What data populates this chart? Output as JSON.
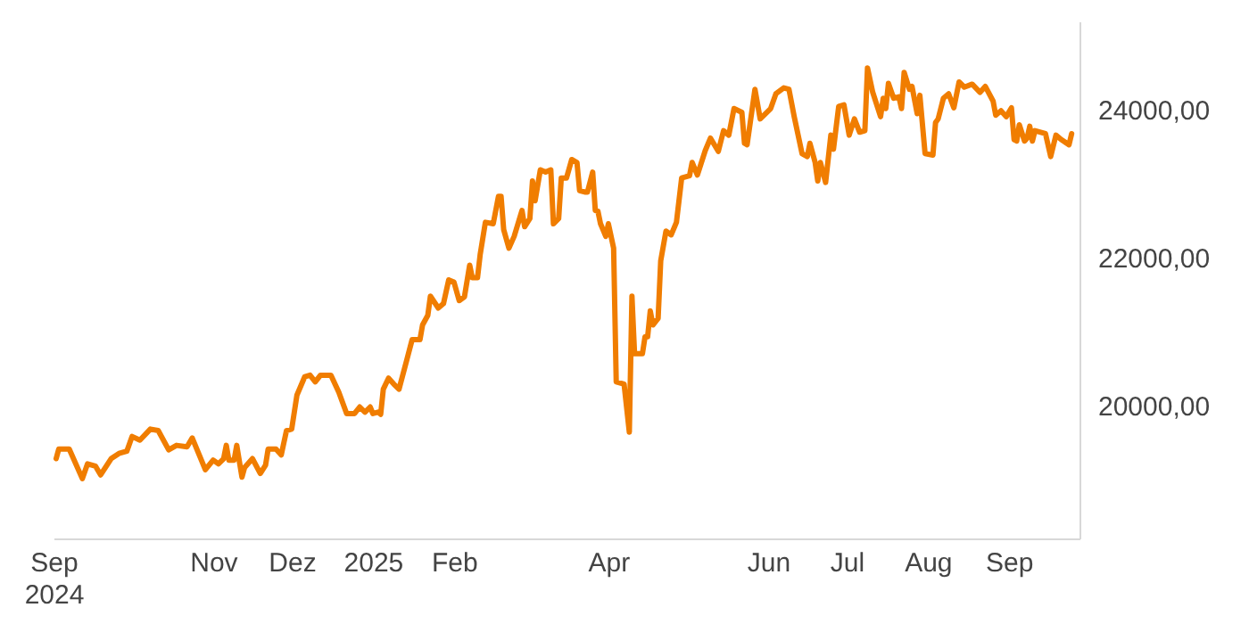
{
  "chart_data": {
    "type": "line",
    "x": [
      "2024-09-02",
      "2024-09-03",
      "2024-09-07",
      "2024-09-12",
      "2024-09-14",
      "2024-09-17",
      "2024-09-19",
      "2024-09-23",
      "2024-09-26",
      "2024-09-29",
      "2024-10-01",
      "2024-10-04",
      "2024-10-08",
      "2024-10-11",
      "2024-10-15",
      "2024-10-18",
      "2024-10-22",
      "2024-10-24",
      "2024-10-29",
      "2024-11-01",
      "2024-11-03",
      "2024-11-05",
      "2024-11-06",
      "2024-11-07",
      "2024-11-09",
      "2024-11-10",
      "2024-11-12",
      "2024-11-13",
      "2024-11-16",
      "2024-11-19",
      "2024-11-21",
      "2024-11-22",
      "2024-11-25",
      "2024-11-27",
      "2024-11-29",
      "2024-12-01",
      "2024-12-03",
      "2024-12-06",
      "2024-12-08",
      "2024-12-10",
      "2024-12-12",
      "2024-12-16",
      "2024-12-19",
      "2024-12-22",
      "2024-12-25",
      "2024-12-27",
      "2024-12-29",
      "2024-12-31",
      "2025-01-01",
      "2025-01-03",
      "2025-01-04",
      "2025-01-05",
      "2025-01-07",
      "2025-01-09",
      "2025-01-11",
      "2025-01-14",
      "2025-01-16",
      "2025-01-19",
      "2025-01-20",
      "2025-01-22",
      "2025-01-23",
      "2025-01-26",
      "2025-01-28",
      "2025-01-30",
      "2025-02-01",
      "2025-02-03",
      "2025-02-05",
      "2025-02-07",
      "2025-02-08",
      "2025-02-10",
      "2025-02-11",
      "2025-02-13",
      "2025-02-16",
      "2025-02-18",
      "2025-02-19",
      "2025-02-20",
      "2025-02-22",
      "2025-02-24",
      "2025-02-27",
      "2025-02-28",
      "2025-03-02",
      "2025-03-03",
      "2025-03-04",
      "2025-03-06",
      "2025-03-08",
      "2025-03-10",
      "2025-03-11",
      "2025-03-13",
      "2025-03-14",
      "2025-03-16",
      "2025-03-18",
      "2025-03-20",
      "2025-03-21",
      "2025-03-23",
      "2025-03-24",
      "2025-03-26",
      "2025-03-27",
      "2025-03-28",
      "2025-03-29",
      "2025-03-31",
      "2025-04-01",
      "2025-04-03",
      "2025-04-04",
      "2025-04-07",
      "2025-04-09",
      "2025-04-10",
      "2025-04-11",
      "2025-04-14",
      "2025-04-15",
      "2025-04-16",
      "2025-04-17",
      "2025-04-18",
      "2025-04-20",
      "2025-04-21",
      "2025-04-23",
      "2025-04-25",
      "2025-04-27",
      "2025-04-29",
      "2025-05-02",
      "2025-05-03",
      "2025-05-05",
      "2025-05-08",
      "2025-05-10",
      "2025-05-13",
      "2025-05-15",
      "2025-05-17",
      "2025-05-19",
      "2025-05-22",
      "2025-05-23",
      "2025-05-24",
      "2025-05-27",
      "2025-05-29",
      "2025-05-31",
      "2025-06-02",
      "2025-06-04",
      "2025-06-07",
      "2025-06-09",
      "2025-06-11",
      "2025-06-14",
      "2025-06-16",
      "2025-06-17",
      "2025-06-19",
      "2025-06-20",
      "2025-06-21",
      "2025-06-23",
      "2025-06-25",
      "2025-06-26",
      "2025-06-28",
      "2025-06-30",
      "2025-07-02",
      "2025-07-04",
      "2025-07-06",
      "2025-07-08",
      "2025-07-09",
      "2025-07-11",
      "2025-07-14",
      "2025-07-15",
      "2025-07-16",
      "2025-07-17",
      "2025-07-19",
      "2025-07-21",
      "2025-07-22",
      "2025-07-23",
      "2025-07-25",
      "2025-07-26",
      "2025-07-28",
      "2025-07-29",
      "2025-07-31",
      "2025-08-03",
      "2025-08-04",
      "2025-08-05",
      "2025-08-07",
      "2025-08-09",
      "2025-08-11",
      "2025-08-13",
      "2025-08-15",
      "2025-08-18",
      "2025-08-21",
      "2025-08-23",
      "2025-08-26",
      "2025-08-27",
      "2025-08-29",
      "2025-08-31",
      "2025-09-02",
      "2025-09-03",
      "2025-09-04",
      "2025-09-05",
      "2025-09-07",
      "2025-09-08",
      "2025-09-09",
      "2025-09-10",
      "2025-09-11",
      "2025-09-15",
      "2025-09-17",
      "2025-09-19",
      "2025-09-21",
      "2025-09-24",
      "2025-09-25"
    ],
    "series": [
      {
        "color": "#f07d00",
        "values": [
          19280,
          19410,
          19410,
          19010,
          19210,
          19180,
          19060,
          19280,
          19350,
          19380,
          19580,
          19530,
          19680,
          19660,
          19400,
          19460,
          19440,
          19560,
          19130,
          19260,
          19210,
          19280,
          19460,
          19260,
          19260,
          19460,
          19030,
          19160,
          19280,
          19080,
          19190,
          19410,
          19410,
          19330,
          19660,
          19680,
          20140,
          20390,
          20410,
          20320,
          20410,
          20410,
          20180,
          19890,
          19890,
          19980,
          19910,
          19980,
          19890,
          19910,
          19880,
          20220,
          20370,
          20290,
          20220,
          20620,
          20890,
          20890,
          21090,
          21220,
          21480,
          21320,
          21380,
          21700,
          21670,
          21420,
          21470,
          21900,
          21730,
          21730,
          22040,
          22480,
          22460,
          22830,
          22830,
          22380,
          22130,
          22290,
          22640,
          22420,
          22530,
          23040,
          22770,
          23190,
          23160,
          23190,
          22460,
          22530,
          23080,
          23080,
          23330,
          23290,
          22910,
          22890,
          22890,
          23160,
          22640,
          22630,
          22460,
          22290,
          22460,
          22130,
          20320,
          20290,
          19640,
          21480,
          20700,
          20700,
          20930,
          20930,
          21280,
          21090,
          21180,
          21960,
          22360,
          22310,
          22480,
          23080,
          23110,
          23290,
          23120,
          23450,
          23620,
          23440,
          23720,
          23660,
          24020,
          23970,
          23550,
          23530,
          24280,
          23880,
          23950,
          24020,
          24220,
          24300,
          24280,
          23910,
          23410,
          23370,
          23550,
          23290,
          23040,
          23290,
          23020,
          23660,
          23470,
          24050,
          24070,
          23660,
          23880,
          23700,
          23720,
          24570,
          24240,
          23910,
          24160,
          24020,
          24360,
          24160,
          24180,
          24020,
          24510,
          24280,
          24320,
          23950,
          24200,
          23410,
          23390,
          23830,
          23880,
          24160,
          24220,
          24030,
          24380,
          24310,
          24350,
          24240,
          24320,
          24120,
          23930,
          23990,
          23910,
          24030,
          23600,
          23580,
          23800,
          23580,
          23620,
          23780,
          23580,
          23720,
          23680,
          23370,
          23660,
          23600,
          23530,
          23680
        ]
      }
    ],
    "xticks": [
      {
        "value": "2024-09-01",
        "label": "Sep\n2024"
      },
      {
        "value": "2024-11-01",
        "label": "Nov"
      },
      {
        "value": "2024-12-01",
        "label": "Dez"
      },
      {
        "value": "2025-01-01",
        "label": "2025"
      },
      {
        "value": "2025-02-01",
        "label": "Feb"
      },
      {
        "value": "2025-04-01",
        "label": "Apr"
      },
      {
        "value": "2025-06-01",
        "label": "Jun"
      },
      {
        "value": "2025-07-01",
        "label": "Jul"
      },
      {
        "value": "2025-08-01",
        "label": "Aug"
      },
      {
        "value": "2025-09-01",
        "label": "Sep"
      }
    ],
    "xlim": [
      "2024-09-01",
      "2025-09-28"
    ],
    "ylim": [
      18200,
      25200
    ],
    "yticks": [
      {
        "value": 20000,
        "label": "20000,00"
      },
      {
        "value": 22000,
        "label": "22000,00"
      },
      {
        "value": 24000,
        "label": "24000,00"
      }
    ]
  }
}
